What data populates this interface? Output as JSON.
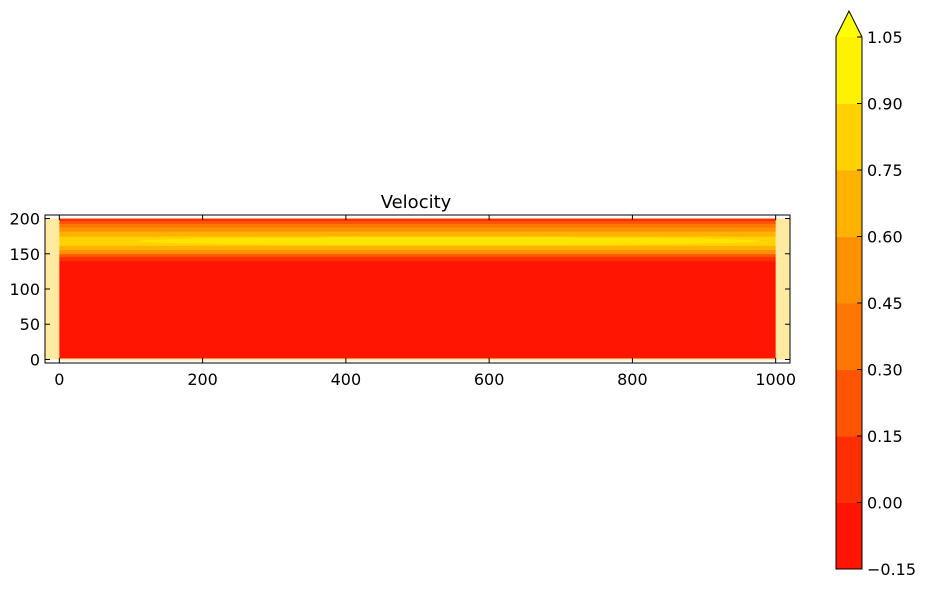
{
  "chart_data": {
    "type": "heatmap",
    "title": "Velocity",
    "xlabel": "",
    "ylabel": "",
    "xlim": [
      -20,
      1020
    ],
    "ylim": [
      -5,
      205
    ],
    "x_ticks": [
      0,
      200,
      400,
      600,
      800,
      1000
    ],
    "y_ticks": [
      0,
      50,
      100,
      150,
      200
    ],
    "colorbar": {
      "levels": [
        -0.15,
        0.0,
        0.15,
        0.3,
        0.45,
        0.6,
        0.75,
        0.9,
        1.05
      ],
      "tick_labels": [
        "−0.15",
        "0.00",
        "0.15",
        "0.30",
        "0.45",
        "0.60",
        "0.75",
        "0.90",
        "1.05"
      ],
      "colors": [
        "#ff1500",
        "#ff2f00",
        "#ff5500",
        "#ff7600",
        "#ff9100",
        "#ffb300",
        "#ffd200",
        "#fff200"
      ],
      "extend": "max"
    },
    "domain": {
      "x_range": [
        0,
        1000
      ],
      "y_range": [
        0,
        200
      ]
    },
    "inlet_outlet_color": "#ffeaa0",
    "profile": {
      "description_levels": "velocity band boundaries by height (data units)",
      "bands": [
        {
          "y0": 0,
          "y1": 140,
          "value": -0.05
        },
        {
          "y0": 140,
          "y1": 146,
          "value": 0.1
        },
        {
          "y0": 146,
          "y1": 150,
          "value": 0.25
        },
        {
          "y0": 150,
          "y1": 156,
          "value": 0.5
        },
        {
          "y0": 156,
          "y1": 162,
          "value": 0.7
        },
        {
          "y0": 162,
          "y1": 175,
          "value": 0.85
        },
        {
          "y0": 175,
          "y1": 182,
          "value": 0.7
        },
        {
          "y0": 182,
          "y1": 188,
          "value": 0.5
        },
        {
          "y0": 188,
          "y1": 193,
          "value": 0.35
        },
        {
          "y0": 193,
          "y1": 197,
          "value": 0.2
        },
        {
          "y0": 197,
          "y1": 200,
          "value": 0.05
        }
      ],
      "light_core": {
        "x0": 110,
        "x1": 980,
        "y0": 162,
        "y1": 174,
        "value": 0.95
      }
    }
  }
}
